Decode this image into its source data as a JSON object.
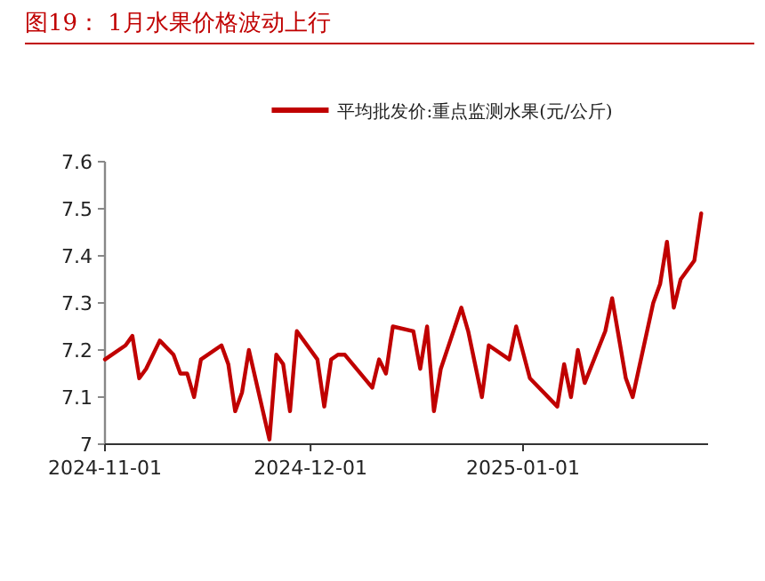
{
  "chart_data": {
    "type": "line",
    "title": "图19： 1月水果价格波动上行",
    "x": [
      "2024-11-01",
      "2024-11-04",
      "2024-11-05",
      "2024-11-06",
      "2024-11-07",
      "2024-11-09",
      "2024-11-11",
      "2024-11-12",
      "2024-11-13",
      "2024-11-14",
      "2024-11-15",
      "2024-11-18",
      "2024-11-19",
      "2024-11-20",
      "2024-11-21",
      "2024-11-22",
      "2024-11-25",
      "2024-11-26",
      "2024-11-27",
      "2024-11-28",
      "2024-11-29",
      "2024-12-02",
      "2024-12-03",
      "2024-12-04",
      "2024-12-05",
      "2024-12-06",
      "2024-12-10",
      "2024-12-11",
      "2024-12-12",
      "2024-12-13",
      "2024-12-16",
      "2024-12-17",
      "2024-12-18",
      "2024-12-19",
      "2024-12-20",
      "2024-12-23",
      "2024-12-24",
      "2024-12-26",
      "2024-12-27",
      "2024-12-30",
      "2024-12-31",
      "2025-01-02",
      "2025-01-06",
      "2025-01-07",
      "2025-01-08",
      "2025-01-09",
      "2025-01-10",
      "2025-01-13",
      "2025-01-14",
      "2025-01-16",
      "2025-01-17",
      "2025-01-20",
      "2025-01-21",
      "2025-01-22",
      "2025-01-23",
      "2025-01-24",
      "2025-01-26",
      "2025-01-27"
    ],
    "series": [
      {
        "name": "平均批发价:重点监测水果(元/公斤)",
        "color": "#c00000",
        "values": [
          7.18,
          7.21,
          7.23,
          7.14,
          7.16,
          7.22,
          7.19,
          7.15,
          7.15,
          7.1,
          7.18,
          7.21,
          7.17,
          7.07,
          7.11,
          7.2,
          7.01,
          7.19,
          7.17,
          7.07,
          7.24,
          7.18,
          7.08,
          7.18,
          7.19,
          7.19,
          7.12,
          7.18,
          7.15,
          7.25,
          7.24,
          7.16,
          7.25,
          7.07,
          7.16,
          7.29,
          7.24,
          7.1,
          7.21,
          7.18,
          7.25,
          7.14,
          7.08,
          7.17,
          7.1,
          7.2,
          7.13,
          7.24,
          7.31,
          7.14,
          7.1,
          7.3,
          7.34,
          7.43,
          7.29,
          7.35,
          7.39,
          7.49
        ]
      }
    ],
    "xlim": [
      "2024-11-01",
      "2025-01-28"
    ],
    "xticks": [
      "2024-11-01",
      "2024-12-01",
      "2025-01-01"
    ],
    "ylim": [
      7,
      7.6
    ],
    "yticks": [
      7,
      7.1,
      7.2,
      7.3,
      7.4,
      7.5,
      7.6
    ],
    "legend": "top",
    "grid": false,
    "marker": "none",
    "line_style": "solid"
  }
}
